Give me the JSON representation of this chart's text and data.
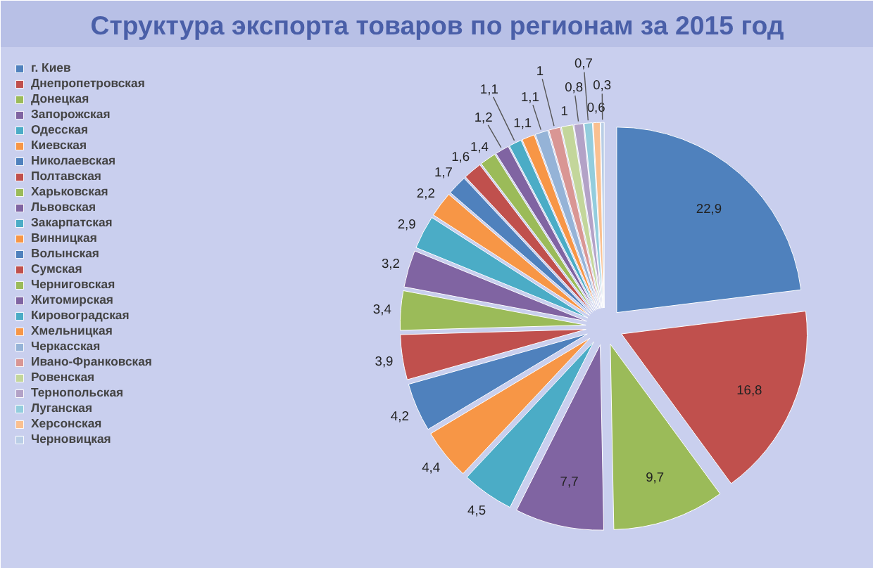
{
  "chart_data": {
    "type": "pie",
    "title": "Структура экспорта товаров по регионам за 2015 год",
    "categories": [
      "г. Киев",
      "Днепропетровская",
      "Донецкая",
      "Запорожская",
      "Одесская",
      "Киевская",
      "Николаевская",
      "Полтавская",
      "Харьковская",
      "Львовская",
      "Закарпатская",
      "Винницкая",
      "Волынская",
      "Сумская",
      "Черниговская",
      "Житомирская",
      "Кировоградская",
      "Хмельницкая",
      "Черкасская",
      "Ивано-Франковская",
      "Ровенская",
      "Тернопольская",
      "Луганская",
      "Херсонская",
      "Черновицкая"
    ],
    "values": [
      22.9,
      16.8,
      9.7,
      7.7,
      4.5,
      4.4,
      4.2,
      3.9,
      3.4,
      3.2,
      2.9,
      2.2,
      1.7,
      1.6,
      1.4,
      1.2,
      1.1,
      1.1,
      1.1,
      1,
      1,
      0.8,
      0.7,
      0.6,
      0.3
    ],
    "value_labels": [
      "22,9",
      "16,8",
      "9,7",
      "7,7",
      "4,5",
      "4,4",
      "4,2",
      "3,9",
      "3,4",
      "3,2",
      "2,9",
      "2,2",
      "1,7",
      "1,6",
      "1,4",
      "1,2",
      "1,1",
      "1,1",
      "1,1",
      "1",
      "1",
      "0,8",
      "0,7",
      "0,6",
      "0,3"
    ],
    "colors": [
      "#4f81bd",
      "#c0504d",
      "#9bbb59",
      "#8064a2",
      "#4bacc6",
      "#f79646",
      "#4f81bd",
      "#c0504d",
      "#9bbb59",
      "#8064a2",
      "#4bacc6",
      "#f79646",
      "#4f81bd",
      "#c0504d",
      "#9bbb59",
      "#8064a2",
      "#4bacc6",
      "#f79646",
      "#95b3d7",
      "#d99694",
      "#c3d69b",
      "#b3a2c7",
      "#93cddd",
      "#fac090",
      "#b9cde5"
    ],
    "legend": "left"
  }
}
